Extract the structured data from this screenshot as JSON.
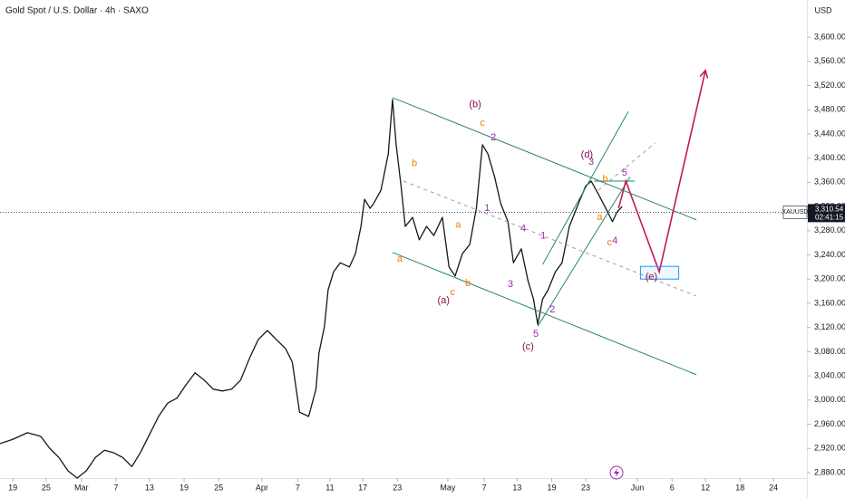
{
  "chart_data": {
    "type": "line",
    "title": "Gold Spot / U.S. Dollar · 4h · SAXO",
    "currency": "USD",
    "symbol": "XAUUSD",
    "last_price": {
      "value": 3310.54,
      "label": "3,310.54"
    },
    "countdown": "02:41:15",
    "color": "#131722",
    "x": [
      -2.1,
      0,
      2.4,
      4.6,
      6.1,
      7.6,
      9.1,
      10.6,
      12.1,
      13.6,
      15.1,
      16.6,
      18.1,
      19.6,
      21.0,
      22.5,
      24.0,
      25.5,
      27.0,
      28.5,
      30.0,
      31.5,
      33.0,
      34.5,
      36.0,
      37.5,
      39.0,
      40.4,
      41.9,
      43.4,
      44.9,
      46.0,
      47.2,
      48.7,
      49.9,
      50.4,
      51.3,
      51.9,
      52.8,
      53.9,
      55.4,
      56.4,
      57.3,
      57.9,
      58.8,
      59.4,
      60.6,
      61.8,
      62.5,
      63.1,
      63.9,
      64.6,
      65.8,
      66.9,
      68.1,
      69.3,
      70.7,
      71.8,
      72.8,
      74.0,
      75.2,
      76.3,
      77.3,
      78.2,
      79.3,
      80.3,
      81.5,
      82.4,
      83.7,
      84.8,
      85.7,
      86.4,
      87.2,
      88.1,
      89.3,
      90.4,
      91.6,
      93.1,
      94.3,
      95.2,
      96.4,
      97.6,
      98.7,
      99.4,
      100.3
    ],
    "values": [
      2928,
      2935,
      2946,
      2940,
      2920,
      2905,
      2883,
      2871,
      2883,
      2905,
      2917,
      2913,
      2905,
      2890,
      2913,
      2943,
      2973,
      2995,
      3003,
      3025,
      3045,
      3033,
      3018,
      3015,
      3018,
      3033,
      3070,
      3100,
      3115,
      3100,
      3085,
      3063,
      2980,
      2973,
      3018,
      3078,
      3122,
      3182,
      3212,
      3227,
      3220,
      3242,
      3287,
      3332,
      3317,
      3325,
      3347,
      3407,
      3497,
      3422,
      3354,
      3287,
      3302,
      3265,
      3287,
      3272,
      3302,
      3220,
      3205,
      3242,
      3257,
      3317,
      3422,
      3407,
      3369,
      3325,
      3295,
      3227,
      3250,
      3197,
      3167,
      3125,
      3167,
      3182,
      3212,
      3227,
      3287,
      3325,
      3354,
      3362,
      3340,
      3317,
      3295,
      3310,
      3320
    ],
    "xlim": [
      -2.1,
      130.7
    ],
    "ylim": [
      2871,
      3661.4
    ],
    "xticks": [
      {
        "value": 0,
        "label": "19"
      },
      {
        "value": 5.5,
        "label": "25"
      },
      {
        "value": 11.3,
        "label": "Mar"
      },
      {
        "value": 17.0,
        "label": "7"
      },
      {
        "value": 22.5,
        "label": "13"
      },
      {
        "value": 28.2,
        "label": "19"
      },
      {
        "value": 33.9,
        "label": "25"
      },
      {
        "value": 41.0,
        "label": "Apr"
      },
      {
        "value": 46.9,
        "label": "7"
      },
      {
        "value": 52.2,
        "label": "11"
      },
      {
        "value": 57.6,
        "label": "17"
      },
      {
        "value": 63.3,
        "label": "23"
      },
      {
        "value": 71.6,
        "label": "May"
      },
      {
        "value": 77.6,
        "label": "7"
      },
      {
        "value": 83.0,
        "label": "13"
      },
      {
        "value": 88.7,
        "label": "19"
      },
      {
        "value": 94.3,
        "label": "23"
      },
      {
        "value": 102.8,
        "label": "Jun"
      },
      {
        "value": 108.5,
        "label": "6"
      },
      {
        "value": 114.0,
        "label": "12"
      },
      {
        "value": 119.7,
        "label": "18"
      },
      {
        "value": 125.2,
        "label": "24"
      }
    ],
    "yticks": [
      {
        "value": 2880,
        "label": "2,880.00"
      },
      {
        "value": 2920,
        "label": "2,920.00"
      },
      {
        "value": 2960,
        "label": "2,960.00"
      },
      {
        "value": 3000,
        "label": "3,000.00"
      },
      {
        "value": 3040,
        "label": "3,040.00"
      },
      {
        "value": 3080,
        "label": "3,080.00"
      },
      {
        "value": 3120,
        "label": "3,120.00"
      },
      {
        "value": 3160,
        "label": "3,160.00"
      },
      {
        "value": 3200,
        "label": "3,200.00"
      },
      {
        "value": 3240,
        "label": "3,240.00"
      },
      {
        "value": 3280,
        "label": "3,280.00"
      },
      {
        "value": 3320,
        "label": "3,320.00"
      },
      {
        "value": 3360,
        "label": "3,360.00"
      },
      {
        "value": 3400,
        "label": "3,400.00"
      },
      {
        "value": 3440,
        "label": "3,440.00"
      },
      {
        "value": 3480,
        "label": "3,480.00"
      },
      {
        "value": 3520,
        "label": "3,520.00"
      },
      {
        "value": 3560,
        "label": "3,560.00"
      },
      {
        "value": 3600,
        "label": "3,600.00"
      }
    ],
    "drawings": [
      {
        "shape": "line",
        "color": "#26866a",
        "x": [
          62.5,
          112.5
        ],
        "y": [
          3500,
          3298
        ]
      },
      {
        "shape": "line",
        "color": "#26866a",
        "x": [
          62.5,
          112.5
        ],
        "y": [
          3244,
          3042
        ]
      },
      {
        "shape": "line",
        "color": "#9e9e9e",
        "dashed": true,
        "x": [
          64.3,
          112.5
        ],
        "y": [
          3362,
          3172
        ]
      },
      {
        "shape": "line",
        "color": "#26866a",
        "x": [
          86.4,
          101.6
        ],
        "y": [
          3122,
          3369
        ]
      },
      {
        "shape": "line",
        "color": "#26866a",
        "x": [
          87.2,
          101.3
        ],
        "y": [
          3224,
          3477
        ]
      },
      {
        "shape": "line",
        "color": "#9e9e9e",
        "dashed": true,
        "x": [
          96.4,
          105.7
        ],
        "y": [
          3347,
          3425
        ]
      },
      {
        "shape": "line",
        "color": "#26866a",
        "x": [
          95.7,
          102.4
        ],
        "y": [
          3362,
          3362
        ]
      },
      {
        "shape": "line",
        "color": "#c2185b",
        "arrow": true,
        "x": [
          99.7,
          100.9,
          106.4,
          114.0
        ],
        "y": [
          3317,
          3362,
          3212,
          3545
        ]
      },
      {
        "shape": "rect",
        "color": "#2196f3",
        "x": [
          103.3,
          109.6
        ],
        "y": [
          3221,
          3200
        ]
      }
    ],
    "annotations": [
      {
        "text": "(b)",
        "x": 76.1,
        "y": 3488,
        "color": "#880e4f"
      },
      {
        "text": "c",
        "x": 77.3,
        "y": 3458,
        "color": "#f57c00"
      },
      {
        "text": "2",
        "x": 79.1,
        "y": 3434,
        "color": "#9c27b0"
      },
      {
        "text": "b",
        "x": 66.1,
        "y": 3391,
        "color": "#f57c00"
      },
      {
        "text": "a",
        "x": 73.3,
        "y": 3289,
        "color": "#f57c00"
      },
      {
        "text": "1",
        "x": 78.1,
        "y": 3317,
        "color": "#9c27b0"
      },
      {
        "text": "4",
        "x": 84.0,
        "y": 3283,
        "color": "#9c27b0"
      },
      {
        "text": "1",
        "x": 87.3,
        "y": 3271,
        "color": "#9c27b0"
      },
      {
        "text": "a",
        "x": 63.7,
        "y": 3233,
        "color": "#f57c00"
      },
      {
        "text": "c",
        "x": 72.4,
        "y": 3178,
        "color": "#f57c00"
      },
      {
        "text": "b",
        "x": 74.9,
        "y": 3193,
        "color": "#f57c00"
      },
      {
        "text": "(a)",
        "x": 70.9,
        "y": 3164,
        "color": "#880e4f"
      },
      {
        "text": "3",
        "x": 81.9,
        "y": 3191,
        "color": "#9c27b0"
      },
      {
        "text": "2",
        "x": 88.8,
        "y": 3149,
        "color": "#9c27b0"
      },
      {
        "text": "5",
        "x": 86.1,
        "y": 3109,
        "color": "#9c27b0"
      },
      {
        "text": "(c)",
        "x": 84.8,
        "y": 3088,
        "color": "#880e4f"
      },
      {
        "text": "(d)",
        "x": 94.5,
        "y": 3405,
        "color": "#880e4f"
      },
      {
        "text": "3",
        "x": 95.2,
        "y": 3393,
        "color": "#9c27b0"
      },
      {
        "text": "5",
        "x": 100.7,
        "y": 3375,
        "color": "#9c27b0"
      },
      {
        "text": "b",
        "x": 97.5,
        "y": 3365,
        "color": "#f57c00"
      },
      {
        "text": "a",
        "x": 96.6,
        "y": 3302,
        "color": "#f57c00"
      },
      {
        "text": "c",
        "x": 98.2,
        "y": 3260,
        "color": "#f57c00"
      },
      {
        "text": "4",
        "x": 99.1,
        "y": 3263,
        "color": "#9c27b0"
      },
      {
        "text": "(e)",
        "x": 105.1,
        "y": 3203,
        "color": "#880e4f"
      }
    ]
  }
}
